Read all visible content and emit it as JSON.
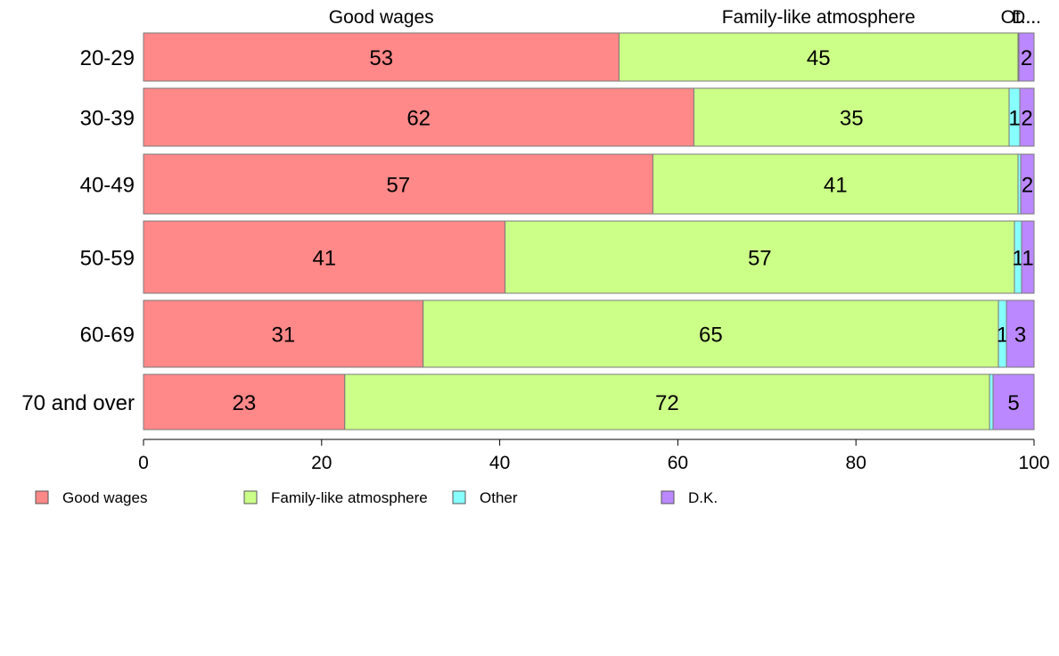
{
  "chart_data": {
    "type": "bar",
    "orientation": "horizontal",
    "stacked": true,
    "categories": [
      "20-29",
      "30-39",
      "40-49",
      "50-59",
      "60-69",
      "70 and over"
    ],
    "series": [
      {
        "name": "Good wages",
        "color": "#FF8888",
        "values": [
          53.4,
          61.8,
          57.2,
          40.6,
          31.4,
          22.6
        ]
      },
      {
        "name": "Family-like atmosphere",
        "color": "#CCFF88",
        "values": [
          44.8,
          35.4,
          41.0,
          57.2,
          64.6,
          72.4
        ]
      },
      {
        "name": "Other",
        "color": "#88FFFF",
        "values": [
          0.1,
          1.2,
          0.3,
          0.8,
          0.9,
          0.4
        ]
      },
      {
        "name": "D.K.",
        "color": "#BB88FF",
        "values": [
          1.7,
          1.6,
          1.5,
          1.4,
          3.1,
          4.6
        ]
      }
    ],
    "data_labels": [
      [
        "53",
        "45",
        "",
        "2"
      ],
      [
        "62",
        "35",
        "1",
        "2"
      ],
      [
        "57",
        "41",
        "",
        "2"
      ],
      [
        "41",
        "57",
        "1",
        "1"
      ],
      [
        "31",
        "65",
        "1",
        "3"
      ],
      [
        "23",
        "72",
        "",
        "5"
      ]
    ],
    "top_labels": [
      "Good wages",
      "Family-like atmosphere",
      "Ot...",
      "D..."
    ],
    "xticks": [
      "0",
      "20",
      "40",
      "60",
      "80",
      "100"
    ],
    "xlim": [
      0,
      100
    ],
    "grid": false,
    "legend": {
      "position": "bottom-left",
      "items": [
        "Good wages",
        "Family-like atmosphere",
        "Other",
        "D.K."
      ]
    }
  }
}
